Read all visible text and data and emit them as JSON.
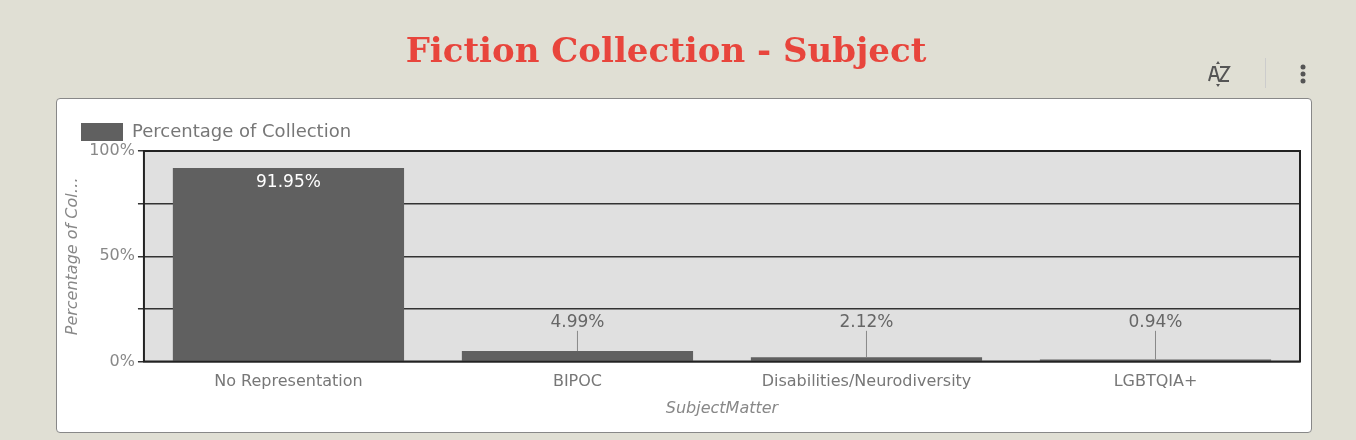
{
  "chart_data": {
    "type": "bar",
    "title": "Fiction Collection - Subject",
    "xlabel": "SubjectMatter",
    "ylabel": "Percentage of Col…",
    "categories": [
      "No Representation",
      "BIPOC",
      "Disabilities/Neurodiversity",
      "LGBTQIA+"
    ],
    "series": [
      {
        "name": "Percentage of Collection",
        "color": "#606060",
        "values": [
          91.95,
          4.99,
          2.12,
          0.94
        ],
        "value_labels": [
          "91.95%",
          "4.99%",
          "2.12%",
          "0.94%"
        ]
      }
    ],
    "ylim": [
      0,
      100
    ],
    "yticks": [
      {
        "value": 0,
        "label": "0%"
      },
      {
        "value": 25,
        "label": null
      },
      {
        "value": 50,
        "label": "50%"
      },
      {
        "value": 75,
        "label": null
      },
      {
        "value": 100,
        "label": "100%"
      }
    ],
    "grid": "y",
    "legend": "top left"
  }
}
